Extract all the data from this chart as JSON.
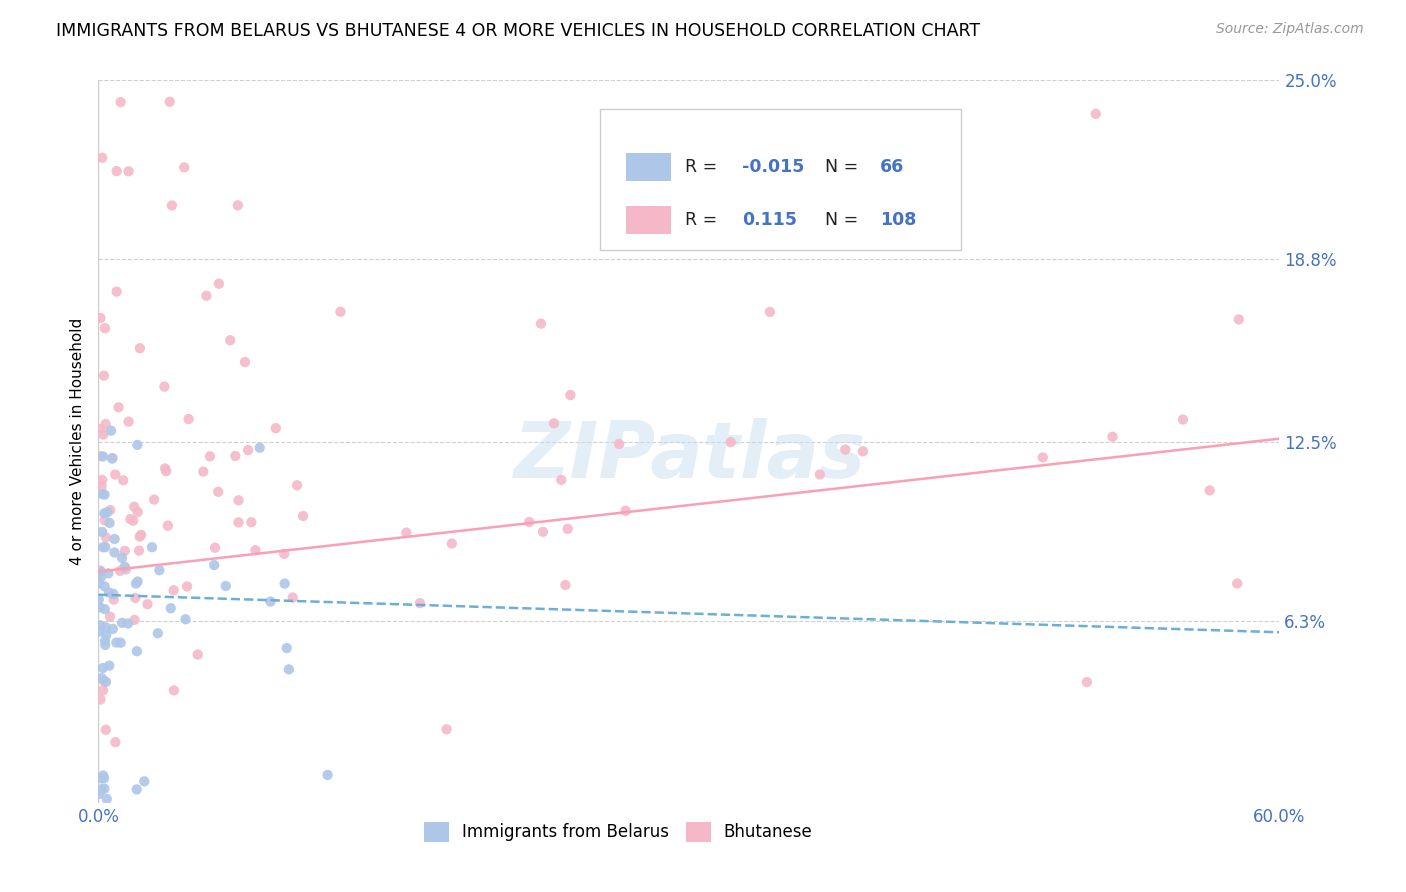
{
  "title": "IMMIGRANTS FROM BELARUS VS BHUTANESE 4 OR MORE VEHICLES IN HOUSEHOLD CORRELATION CHART",
  "source": "Source: ZipAtlas.com",
  "ylabel_label": "4 or more Vehicles in Household",
  "belarus_color": "#aec6e8",
  "bhutanese_color": "#f4b8c8",
  "belarus_line_color": "#6baed6",
  "bhutanese_line_color": "#fa9fb5",
  "watermark": "ZIPatlas",
  "background_color": "#ffffff",
  "grid_color": "#d0d0d0",
  "x_min": 0.0,
  "x_max": 0.6,
  "y_min": 0.0,
  "y_max": 0.25,
  "y_tick_vals": [
    0.063,
    0.125,
    0.188,
    0.25
  ],
  "y_tick_labels": [
    "6.3%",
    "12.5%",
    "18.8%",
    "25.0%"
  ],
  "x_tick_vals": [
    0.0,
    0.6
  ],
  "x_tick_labels": [
    "0.0%",
    "60.0%"
  ],
  "bel_R": "-0.015",
  "bel_N": "66",
  "bhu_R": "0.115",
  "bhu_N": "108",
  "bel_line_y_start": 0.072,
  "bel_line_y_end": 0.059,
  "bhu_line_y_start": 0.08,
  "bhu_line_y_end": 0.126
}
